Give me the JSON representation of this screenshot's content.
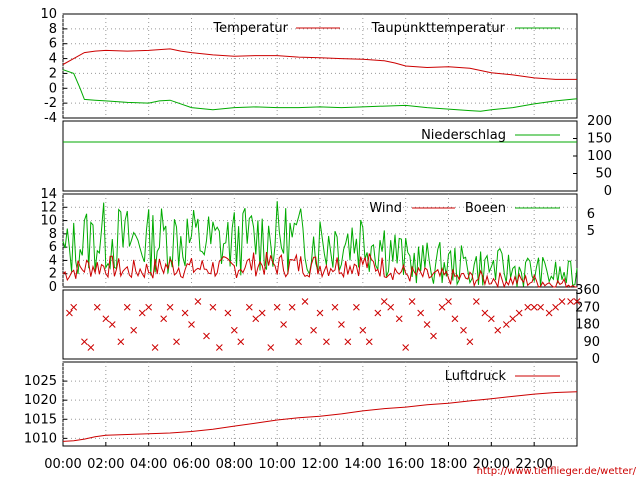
{
  "source_link": "http://www.tiefflieger.de/wetter/",
  "colors": {
    "red": "#cc0000",
    "green": "#00aa00",
    "grid": "#999999"
  },
  "chart_data": [
    {
      "type": "line",
      "x_ticks": [
        "00:00",
        "02:00",
        "04:00",
        "06:00",
        "08:00",
        "10:00",
        "12:00",
        "14:00",
        "16:00",
        "18:00",
        "20:00",
        "22:00"
      ],
      "ylim": [
        -4,
        10
      ],
      "y_ticks": [
        -4,
        -2,
        0,
        2,
        4,
        6,
        8,
        10
      ],
      "grid": true,
      "legend_position": "top",
      "series": [
        {
          "name": "Temperatur",
          "color": "red",
          "x": [
            0,
            0.5,
            1,
            1.5,
            2,
            3,
            4,
            5,
            5.5,
            6,
            7,
            8,
            9,
            10,
            11,
            12,
            13,
            14,
            15,
            15.5,
            16,
            17,
            18,
            19,
            19.5,
            20,
            21,
            22,
            23,
            24
          ],
          "y": [
            3.2,
            4.0,
            4.8,
            5.0,
            5.1,
            5.0,
            5.1,
            5.3,
            5.0,
            4.8,
            4.5,
            4.3,
            4.4,
            4.4,
            4.2,
            4.1,
            4.0,
            3.9,
            3.7,
            3.4,
            3.0,
            2.8,
            2.9,
            2.7,
            2.4,
            2.1,
            1.8,
            1.4,
            1.2,
            1.2
          ]
        },
        {
          "name": "Taupunkttemperatur",
          "color": "green",
          "x": [
            0,
            0.5,
            0.8,
            1,
            1.5,
            2,
            3,
            4,
            4.5,
            5,
            6,
            7,
            8,
            9,
            10,
            11,
            12,
            13,
            14,
            15,
            16,
            17,
            18,
            19,
            19.5,
            20,
            21,
            22,
            23,
            24
          ],
          "y": [
            2.5,
            2.0,
            0,
            -1.5,
            -1.6,
            -1.7,
            -1.9,
            -2.0,
            -1.7,
            -1.6,
            -2.6,
            -2.9,
            -2.6,
            -2.5,
            -2.6,
            -2.6,
            -2.5,
            -2.6,
            -2.5,
            -2.4,
            -2.3,
            -2.6,
            -2.8,
            -3.0,
            -3.1,
            -2.9,
            -2.6,
            -2.1,
            -1.7,
            -1.4
          ]
        }
      ]
    },
    {
      "type": "line",
      "ylim": [
        0,
        200
      ],
      "y_ticks": [
        0,
        50,
        100,
        150,
        200
      ],
      "y_axis_side": "right",
      "legend_position": "top-right",
      "series": [
        {
          "name": "Niederschlag",
          "color": "green",
          "x": [
            0,
            24
          ],
          "y": [
            140,
            140
          ]
        }
      ]
    },
    {
      "type": "line",
      "ylim": [
        0,
        14
      ],
      "y_ticks": [
        0,
        2,
        4,
        6,
        8,
        10,
        12,
        14
      ],
      "right_axis_labels": [
        5,
        6
      ],
      "grid": true,
      "legend_position": "top-right",
      "series": [
        {
          "name": "Wind",
          "color": "red",
          "x": [
            0,
            1,
            2,
            3,
            4,
            5,
            6,
            7,
            8,
            9,
            10,
            11,
            12,
            13,
            14,
            15,
            16,
            17,
            18,
            19,
            20,
            21,
            22,
            23,
            24
          ],
          "y": [
            2.0,
            3.0,
            3.2,
            2.5,
            2.6,
            3.2,
            2.8,
            2.9,
            3.0,
            3.5,
            3.3,
            3.4,
            3.2,
            3.4,
            3.6,
            3.0,
            2.0,
            1.6,
            1.5,
            1.3,
            1.2,
            1.0,
            0.9,
            0.5,
            0.4
          ]
        },
        {
          "name": "Boeen",
          "color": "green",
          "x": [
            0,
            1,
            2,
            3,
            4,
            5,
            6,
            7,
            8,
            9,
            10,
            11,
            12,
            13,
            14,
            15,
            16,
            17,
            18,
            19,
            20,
            21,
            22,
            23,
            24
          ],
          "y": [
            5.0,
            7.0,
            7.5,
            7.0,
            6.8,
            7.6,
            7.2,
            6.6,
            6.8,
            7.4,
            7.5,
            7.0,
            7.0,
            7.2,
            7.6,
            6.5,
            4.0,
            3.6,
            3.4,
            3.1,
            3.0,
            2.6,
            2.3,
            1.8,
            1.6
          ]
        }
      ]
    },
    {
      "type": "scatter",
      "ylim": [
        0,
        360
      ],
      "right_axis_labels": [
        0,
        90,
        180,
        270,
        360
      ],
      "series": [
        {
          "name": "",
          "color": "red",
          "x": [
            0.3,
            0.5,
            1.0,
            1.3,
            1.6,
            2.0,
            2.3,
            2.7,
            3.0,
            3.3,
            3.7,
            4.0,
            4.3,
            4.7,
            5.0,
            5.3,
            5.7,
            6.0,
            6.3,
            6.7,
            7.0,
            7.3,
            7.7,
            8.0,
            8.3,
            8.7,
            9.0,
            9.3,
            9.7,
            10.0,
            10.3,
            10.7,
            11.0,
            11.3,
            11.7,
            12.0,
            12.3,
            12.7,
            13.0,
            13.3,
            13.7,
            14.0,
            14.3,
            14.7,
            15.0,
            15.3,
            15.7,
            16.0,
            16.3,
            16.7,
            17.0,
            17.3,
            17.7,
            18.0,
            18.3,
            18.7,
            19.0,
            19.3,
            19.7,
            20.0,
            20.3,
            20.7,
            21.0,
            21.3,
            21.7,
            22.0,
            22.3,
            22.7,
            23.0,
            23.3,
            23.7,
            24.0
          ],
          "y": [
            240,
            270,
            90,
            60,
            270,
            210,
            180,
            90,
            270,
            150,
            240,
            270,
            60,
            210,
            270,
            90,
            240,
            180,
            300,
            120,
            270,
            60,
            240,
            150,
            90,
            270,
            210,
            240,
            60,
            270,
            180,
            270,
            90,
            300,
            150,
            240,
            90,
            270,
            180,
            90,
            270,
            150,
            90,
            240,
            300,
            270,
            210,
            60,
            300,
            240,
            180,
            120,
            270,
            300,
            210,
            150,
            90,
            300,
            240,
            210,
            150,
            180,
            210,
            240,
            270,
            270,
            270,
            240,
            270,
            300,
            300,
            300
          ]
        }
      ]
    },
    {
      "type": "line",
      "ylim": [
        1008,
        1030
      ],
      "y_ticks": [
        1010,
        1015,
        1020,
        1025
      ],
      "grid": true,
      "legend_position": "top-right",
      "series": [
        {
          "name": "Luftdruck",
          "color": "red",
          "x": [
            0,
            0.5,
            1,
            1.5,
            2,
            3,
            4,
            5,
            6,
            7,
            8,
            9,
            10,
            11,
            12,
            13,
            14,
            15,
            16,
            17,
            18,
            19,
            20,
            21,
            22,
            23,
            24
          ],
          "y": [
            1009.2,
            1009.4,
            1009.8,
            1010.4,
            1010.8,
            1011.0,
            1011.2,
            1011.4,
            1011.8,
            1012.4,
            1013.2,
            1014.0,
            1014.8,
            1015.4,
            1015.8,
            1016.4,
            1017.2,
            1017.8,
            1018.2,
            1018.8,
            1019.2,
            1019.8,
            1020.4,
            1021.0,
            1021.6,
            1022.0,
            1022.2
          ]
        }
      ]
    }
  ]
}
